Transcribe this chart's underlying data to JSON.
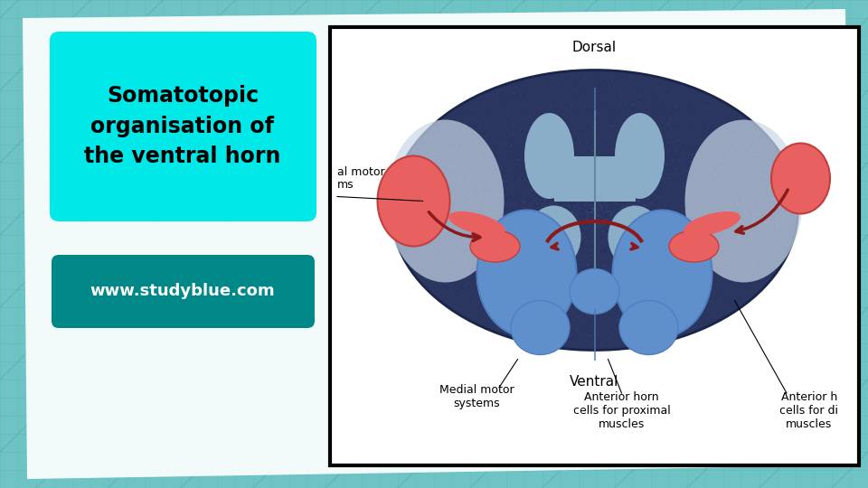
{
  "title_text": "Somatotopic\norganisation of\nthe ventral horn",
  "url_text": "www.studyblue.com",
  "title_box_color": "#00E8E8",
  "url_box_color_top": "#00AAAA",
  "url_box_color_bot": "#007777",
  "title_text_color": "#000000",
  "url_text_color": "#FFFFFF",
  "bg_teal": "#6EC4C4",
  "dorsal_label": "Dorsal",
  "ventral_label": "Ventral",
  "medial_label": "Medial motor\nsystems",
  "anterior_prox_label": "Anterior horn\ncells for proximal\nmuscles",
  "anterior_dist_label": "Anterior h\ncells for di\nmuscles",
  "lateral_motor_label": "al motor\nms",
  "cord_dark": "#2A3560",
  "cord_medium": "#3A4878",
  "cord_light": "#8AAEC8",
  "cord_lighter": "#B0C8DC",
  "blue_ventral": "#6090CC",
  "blue_ventral2": "#5080C0",
  "red_lateral": "#E86060",
  "red_dark": "#8B1A1A",
  "white_matter": "#C8D8E8"
}
